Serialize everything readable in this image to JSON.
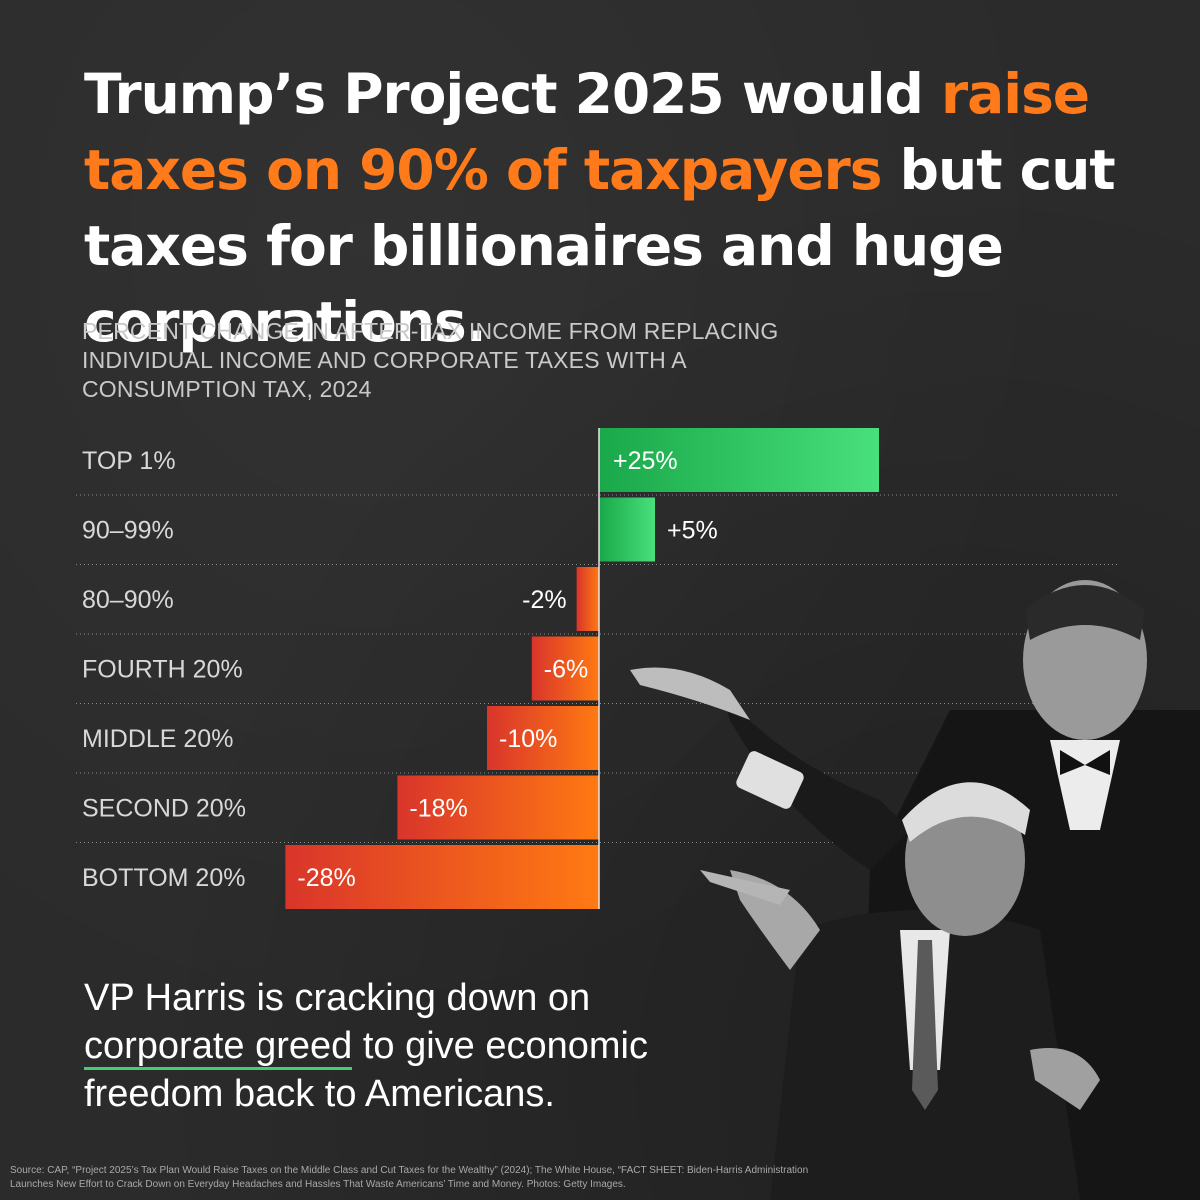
{
  "headline": {
    "part1": "Trump’s Project 2025 would ",
    "highlight": "raise taxes on 90% of taxpayers",
    "part2": " but cut taxes for billionaires and huge corporations."
  },
  "colors": {
    "background": "#2b2b2b",
    "highlight_orange": "#ff7a1a",
    "positive_green": "#3fd16f",
    "negative_red": "#d9352b",
    "underline_green": "#3fd16f"
  },
  "chart_data": {
    "type": "bar",
    "orientation": "horizontal",
    "title": "PERCENT CHANGE IN AFTER-TAX INCOME FROM REPLACING INDIVIDUAL INCOME AND CORPORATE TAXES WITH A CONSUMPTION TAX, 2024",
    "categories": [
      "TOP 1%",
      "90–99%",
      "80–90%",
      "FOURTH 20%",
      "MIDDLE 20%",
      "SECOND 20%",
      "BOTTOM 20%"
    ],
    "values": [
      25,
      5,
      -2,
      -6,
      -10,
      -18,
      -28
    ],
    "value_labels": [
      "+25%",
      "+5%",
      "-2%",
      "-6%",
      "-10%",
      "-18%",
      "-28%"
    ],
    "xlim": [
      -28,
      25
    ],
    "grid": "dotted row separators"
  },
  "bottom_text": {
    "part1": "VP Harris is cracking down on ",
    "underlined": "corporate greed",
    "part2": " to give economic freedom back to Americans."
  },
  "source": "Source: CAP, “Project 2025’s Tax Plan Would Raise Taxes on the Middle Class and Cut Taxes for the Wealthy” (2024); The White House, “FACT SHEET: Biden-Harris Administration Launches New Effort to Crack Down on Everyday Headaches and Hassles That Waste Americans’ Time and Money. Photos: Getty Images."
}
